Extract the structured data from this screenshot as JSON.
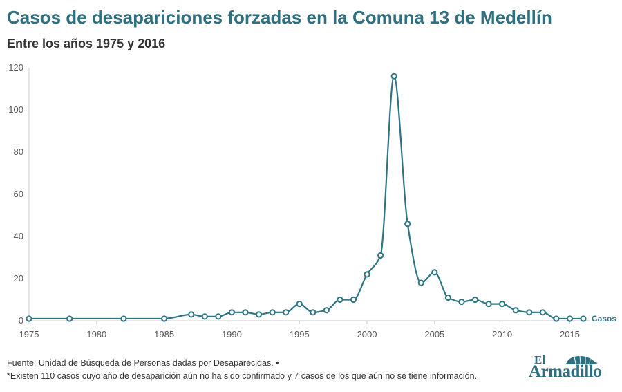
{
  "title": "Casos de desapariciones forzadas en la Comuna 13 de Medellín",
  "subtitle": "Entre los años 1975 y 2016",
  "footer": {
    "source": "Fuente: Unidad de Búsqueda de Personas dadas por Desaparecidas. •",
    "note": "*Existen 110 casos cuyo año de desaparición aún no ha sido confirmado y 7 casos de los que aún no se tiene información."
  },
  "logo": {
    "line1": "El",
    "line2": "Armadillo"
  },
  "colors": {
    "series": "#2e7583",
    "title": "#2e6f80"
  },
  "chart_data": {
    "type": "line",
    "x": [
      1975,
      1978,
      1982,
      1985,
      1987,
      1988,
      1989,
      1990,
      1991,
      1992,
      1993,
      1994,
      1995,
      1996,
      1997,
      1998,
      1999,
      2000,
      2001,
      2002,
      2003,
      2004,
      2005,
      2006,
      2007,
      2008,
      2009,
      2010,
      2011,
      2012,
      2013,
      2014,
      2015,
      2016
    ],
    "series": [
      {
        "name": "Casos",
        "values": [
          1,
          1,
          1,
          1,
          3,
          2,
          2,
          4,
          4,
          3,
          4,
          4,
          8,
          4,
          5,
          10,
          10,
          22,
          31,
          116,
          46,
          18,
          23,
          11,
          9,
          10,
          8,
          8,
          5,
          4,
          4,
          1,
          1,
          1
        ]
      }
    ],
    "xlim": [
      1975,
      2016
    ],
    "ylim": [
      0,
      120
    ],
    "xticks": [
      1975,
      1980,
      1985,
      1990,
      1995,
      2000,
      2005,
      2010,
      2015
    ],
    "yticks": [
      0,
      20,
      40,
      60,
      80,
      100,
      120
    ],
    "grid": false,
    "marker": "open-circle",
    "curve": "smooth"
  }
}
